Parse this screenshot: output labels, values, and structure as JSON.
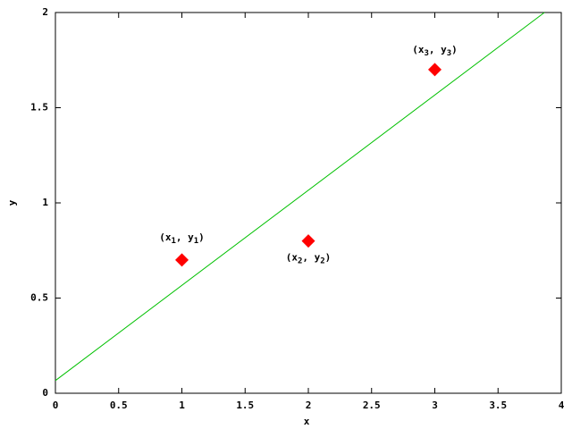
{
  "chart_data": {
    "type": "scatter",
    "x_label": "x",
    "y_label": "y",
    "xlim": [
      0,
      4
    ],
    "ylim": [
      0,
      2
    ],
    "xticks": [
      0,
      0.5,
      1,
      1.5,
      2,
      2.5,
      3,
      3.5,
      4
    ],
    "yticks": [
      0,
      0.5,
      1,
      1.5,
      2
    ],
    "series": [
      {
        "type": "scatter",
        "color": "#ff0000",
        "x": [
          1,
          2,
          3
        ],
        "values": [
          0.7,
          0.8,
          1.7
        ]
      },
      {
        "type": "line",
        "color": "#00c000",
        "x": [
          0,
          3.8667
        ],
        "values": [
          0.0667,
          2
        ]
      }
    ],
    "annotations": [
      {
        "parts": [
          "(x",
          "1",
          ", y",
          "1",
          ")"
        ]
      },
      {
        "parts": [
          "(x",
          "2",
          ", y",
          "2",
          ")"
        ]
      },
      {
        "parts": [
          "(x",
          "3",
          ", y",
          "3",
          ")"
        ]
      }
    ]
  }
}
